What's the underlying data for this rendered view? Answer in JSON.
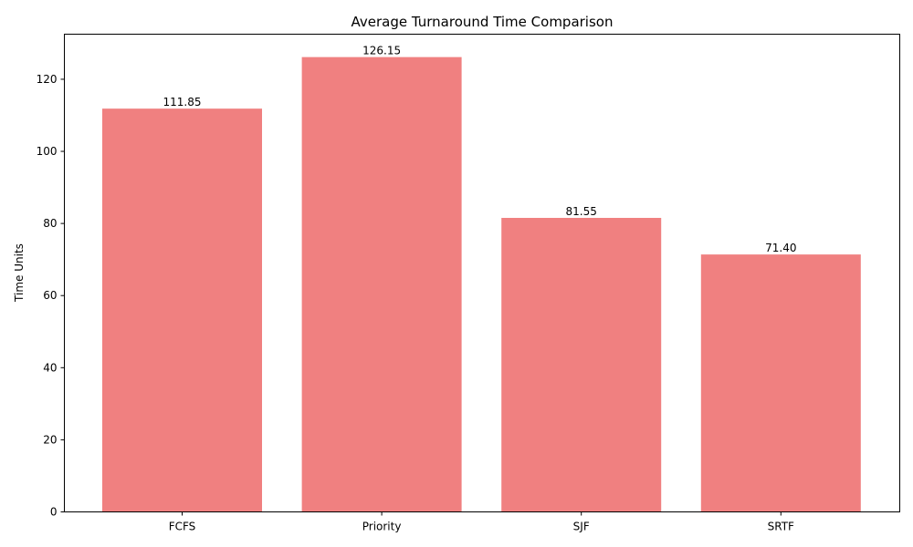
{
  "chart_data": {
    "type": "bar",
    "title": "Average Turnaround Time Comparison",
    "xlabel": "",
    "ylabel": "Time Units",
    "categories": [
      "FCFS",
      "Priority",
      "SJF",
      "SRTF"
    ],
    "values": [
      111.85,
      126.15,
      81.55,
      71.4
    ],
    "data_labels": [
      "111.85",
      "126.15",
      "81.55",
      "71.40"
    ],
    "ylim": [
      0,
      132.5
    ],
    "yticks": [
      0,
      20,
      40,
      60,
      80,
      100,
      120
    ],
    "bar_color": "#F08080",
    "grid": false,
    "legend": "none"
  }
}
